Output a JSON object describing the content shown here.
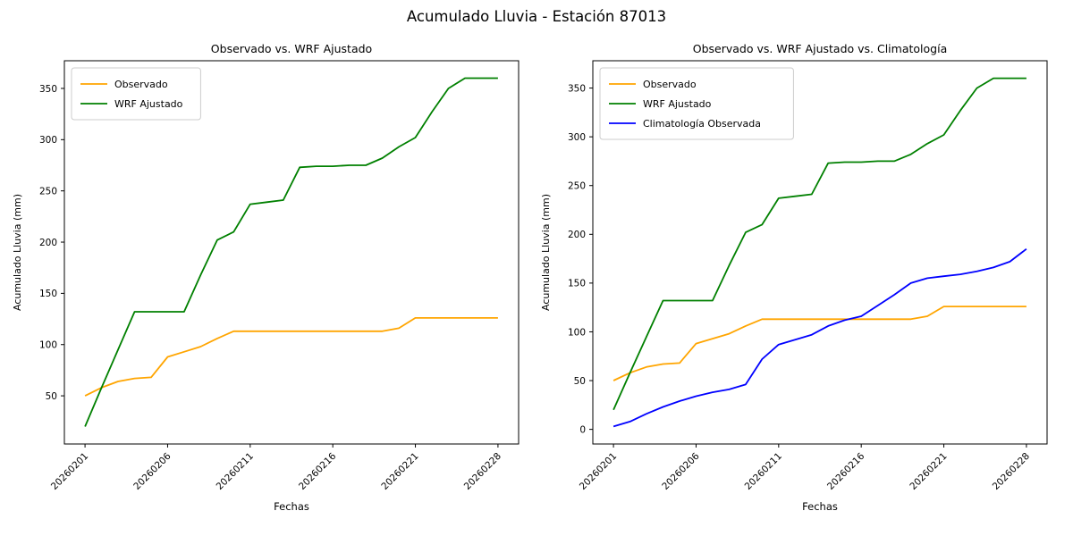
{
  "figure": {
    "suptitle": "Acumulado Lluvia - Estación 87013"
  },
  "chart_data": [
    {
      "type": "line",
      "title": "Observado vs. WRF Ajustado",
      "xlabel": "Fechas",
      "ylabel": "Acumulado Lluvia (mm)",
      "grid": false,
      "xlim": [
        -1.25,
        26.25
      ],
      "ylim": [
        3,
        377
      ],
      "y_ticks": [
        50,
        100,
        150,
        200,
        250,
        300,
        350
      ],
      "x_tick_positions": [
        0,
        5,
        10,
        15,
        20,
        25
      ],
      "x_tick_labels": [
        "20260201",
        "20260206",
        "20260211",
        "20260216",
        "20260221",
        "20260228"
      ],
      "x_tick_rotation_deg": 45,
      "legend": {
        "position": "upper left"
      },
      "series": [
        {
          "name": "Observado",
          "color": "#FFA500",
          "values": [
            50,
            58,
            64,
            67,
            68,
            88,
            93,
            98,
            106,
            113,
            113,
            113,
            113,
            113,
            113,
            113,
            113,
            113,
            113,
            116,
            126,
            126,
            126,
            126,
            126,
            126
          ]
        },
        {
          "name": "WRF Ajustado",
          "color": "#008000",
          "values": [
            20,
            58,
            95,
            132,
            132,
            132,
            132,
            168,
            202,
            210,
            237,
            239,
            241,
            273,
            274,
            274,
            275,
            275,
            282,
            293,
            302,
            327,
            350,
            360,
            360,
            360
          ]
        }
      ]
    },
    {
      "type": "line",
      "title": "Observado vs. WRF Ajustado vs. Climatología",
      "xlabel": "Fechas",
      "ylabel": "Acumulado Lluvia (mm)",
      "grid": false,
      "xlim": [
        -1.25,
        26.25
      ],
      "ylim": [
        -15,
        378
      ],
      "y_ticks": [
        0,
        50,
        100,
        150,
        200,
        250,
        300,
        350
      ],
      "x_tick_positions": [
        0,
        5,
        10,
        15,
        20,
        25
      ],
      "x_tick_labels": [
        "20260201",
        "20260206",
        "20260211",
        "20260216",
        "20260221",
        "20260228"
      ],
      "x_tick_rotation_deg": 45,
      "legend": {
        "position": "upper left"
      },
      "series": [
        {
          "name": "Observado",
          "color": "#FFA500",
          "values": [
            50,
            58,
            64,
            67,
            68,
            88,
            93,
            98,
            106,
            113,
            113,
            113,
            113,
            113,
            113,
            113,
            113,
            113,
            113,
            116,
            126,
            126,
            126,
            126,
            126,
            126
          ]
        },
        {
          "name": "WRF Ajustado",
          "color": "#008000",
          "values": [
            20,
            58,
            95,
            132,
            132,
            132,
            132,
            168,
            202,
            210,
            237,
            239,
            241,
            273,
            274,
            274,
            275,
            275,
            282,
            293,
            302,
            327,
            350,
            360,
            360,
            360
          ]
        },
        {
          "name": "Climatología Observada",
          "color": "#0000FF",
          "values": [
            3,
            8,
            16,
            23,
            29,
            34,
            38,
            41,
            46,
            72,
            87,
            92,
            97,
            106,
            112,
            116,
            127,
            138,
            150,
            155,
            157,
            159,
            162,
            166,
            172,
            185
          ]
        }
      ]
    }
  ]
}
